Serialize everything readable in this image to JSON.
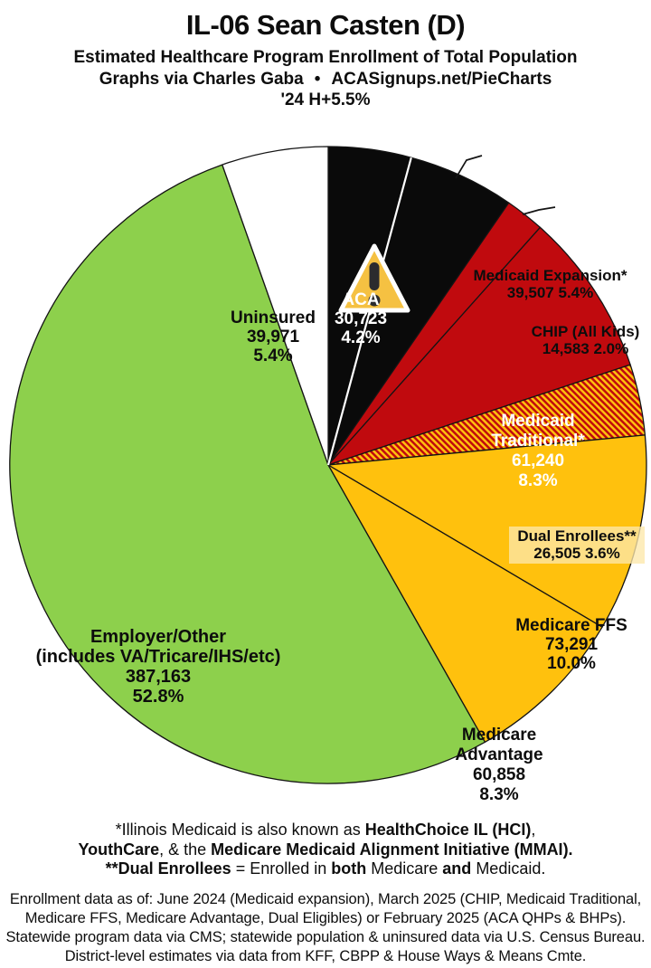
{
  "header": {
    "title": "IL-06 Sean Casten (D)",
    "title_color": "#1076C4",
    "subtitle": "Estimated Healthcare Program Enrollment of Total Population",
    "credit_left": "Graphs via Charles Gaba",
    "credit_separator": "•",
    "credit_right": "ACASignups.net/PieCharts",
    "tagline": "'24 H+5.5%",
    "tagline_color": "#0A86D6"
  },
  "chart_data": {
    "type": "pie",
    "title": "Estimated Healthcare Program Enrollment of Total Population",
    "start_angle_deg": 0,
    "direction": "clockwise",
    "slices": [
      {
        "id": "aca",
        "name": "ACA",
        "value": 30723,
        "pct": 4.2,
        "color": "#0A0A0A",
        "fill": "solid",
        "label_position": "inside",
        "label_lines": [
          "ACA",
          "30,723",
          "4.2%"
        ]
      },
      {
        "id": "medicaid-expansion",
        "name": "Medicaid Expansion*",
        "value": 39507,
        "pct": 5.4,
        "color": "#0A0A0A",
        "fill": "solid",
        "label_position": "outside",
        "label_lines": [
          "Medicaid Expansion*",
          "39,507 5.4%"
        ]
      },
      {
        "id": "chip",
        "name": "CHIP (All Kids)",
        "value": 14583,
        "pct": 2.0,
        "color": "#C00A0E",
        "fill": "solid",
        "label_position": "outside",
        "label_lines": [
          "CHIP (All Kids)",
          "14,583 2.0%"
        ]
      },
      {
        "id": "medicaid-traditional",
        "name": "Medicaid Traditional*",
        "value": 61240,
        "pct": 8.3,
        "color": "#C00A0E",
        "fill": "solid",
        "label_position": "inside",
        "label_lines": [
          "Medicaid",
          "Traditional*",
          "61,240",
          "8.3%"
        ]
      },
      {
        "id": "dual-enrollees",
        "name": "Dual Enrollees**",
        "value": 26505,
        "pct": 3.6,
        "color": "#C00A0E",
        "fill": "hatch",
        "label_position": "inside-boxed",
        "label_lines": [
          "Dual Enrollees**",
          "26,505 3.6%"
        ]
      },
      {
        "id": "medicare-ffs",
        "name": "Medicare FFS",
        "value": 73291,
        "pct": 10.0,
        "color": "#FFC10D",
        "fill": "solid",
        "label_position": "inside",
        "label_lines": [
          "Medicare FFS",
          "73,291",
          "10.0%"
        ]
      },
      {
        "id": "medicare-advantage",
        "name": "Medicare Advantage",
        "value": 60858,
        "pct": 8.3,
        "color": "#FFC10D",
        "fill": "solid",
        "label_position": "inside",
        "label_lines": [
          "Medicare",
          "Advantage",
          "60,858",
          "8.3%"
        ]
      },
      {
        "id": "employer-other",
        "name": "Employer/Other (includes VA/Tricare/IHS/etc)",
        "value": 387163,
        "pct": 52.8,
        "color": "#8DD04C",
        "fill": "solid",
        "label_position": "inside",
        "label_lines": [
          "Employer/Other",
          "(includes VA/Tricare/IHS/etc)",
          "387,163",
          "52.8%"
        ]
      },
      {
        "id": "uninsured",
        "name": "Uninsured",
        "value": 39971,
        "pct": 5.4,
        "color": "#FFFFFF",
        "fill": "solid",
        "label_position": "inside",
        "label_lines": [
          "Uninsured",
          "39,971",
          "5.4%"
        ]
      }
    ],
    "hatch": {
      "base": "#FFC10D",
      "stripe": "#C00A0E"
    },
    "slice_border_color": "#141414",
    "white_divider_after_slice_index": 0,
    "warning_icon": {
      "fill": "#F5C142",
      "mark": "#2B2B2E",
      "outline": "#FFFFFF"
    }
  },
  "footnotes": {
    "primary_lines": [
      [
        {
          "t": "*Illinois Medicaid is also known as ",
          "b": false
        },
        {
          "t": "HealthChoice IL (HCI)",
          "b": true
        },
        {
          "t": ",",
          "b": false
        }
      ],
      [
        {
          "t": "YouthCare",
          "b": true
        },
        {
          "t": ", & the ",
          "b": false
        },
        {
          "t": "Medicare Medicaid Alignment Initiative (MMAI).",
          "b": true
        }
      ],
      [
        {
          "t": "**Dual Enrollees",
          "b": true
        },
        {
          "t": " = Enrolled in ",
          "b": false
        },
        {
          "t": "both",
          "b": true
        },
        {
          "t": " Medicare ",
          "b": false
        },
        {
          "t": "and",
          "b": true
        },
        {
          "t": " Medicaid.",
          "b": false
        }
      ]
    ],
    "secondary_lines": [
      "Enrollment data as of: June 2024 (Medicaid expansion), March 2025 (CHIP, Medicaid Traditional,",
      "Medicare FFS, Medicare Advantage, Dual Eligibles) or February 2025 (ACA QHPs & BHPs).",
      "Statewide program data via CMS; statewide population & uninsured data via U.S. Census Bureau.",
      "District-level estimates via data from KFF, CBPP & House Ways & Means Cmte."
    ]
  }
}
